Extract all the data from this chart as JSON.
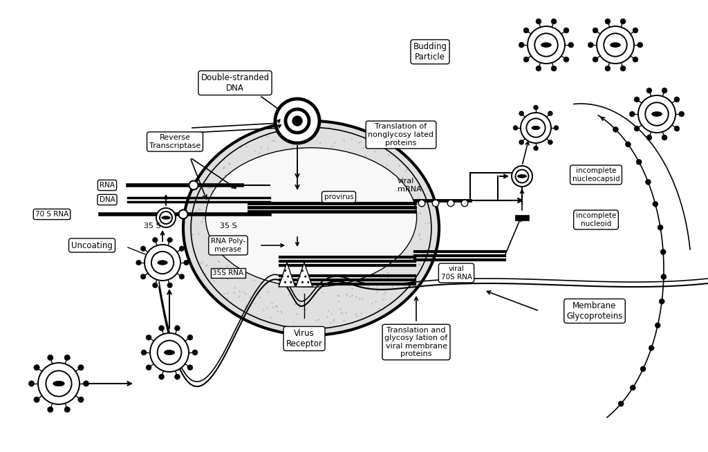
{
  "labels": {
    "double_stranded_dna": "Double-stranded\nDNA",
    "reverse_transcriptase": "Reverse\nTranscriptase",
    "rna": "RNA",
    "dna": "DNA",
    "70s_rna": "70 S RNA",
    "35s_left": "35 S",
    "35s_right": "35 S",
    "provirus": "provirus",
    "rna_polymerase": "RNA Poly-\nmerase",
    "35s_rna": "35S RNA",
    "viral_mrna": "viral\nmRNA",
    "translation_nonglyco": "Translation of\nnonglycosy lated\nproteins",
    "budding_particle": "Budding\nParticle",
    "incomplete_nucleocapsid": "incomplete\nnucleocapsid",
    "incomplete_nucleoid": "incomplete\nnucleoid",
    "viral_70s_rna": "viral\n70S RNA",
    "translation_glyco": "Translation and\nglycosy lation of\nviral membrane\nproteins",
    "membrane_glycoproteins": "Membrane\nGlycoproteins",
    "uncoating": "Uncoating",
    "virus_receptor": "Virus\nReceptor"
  }
}
